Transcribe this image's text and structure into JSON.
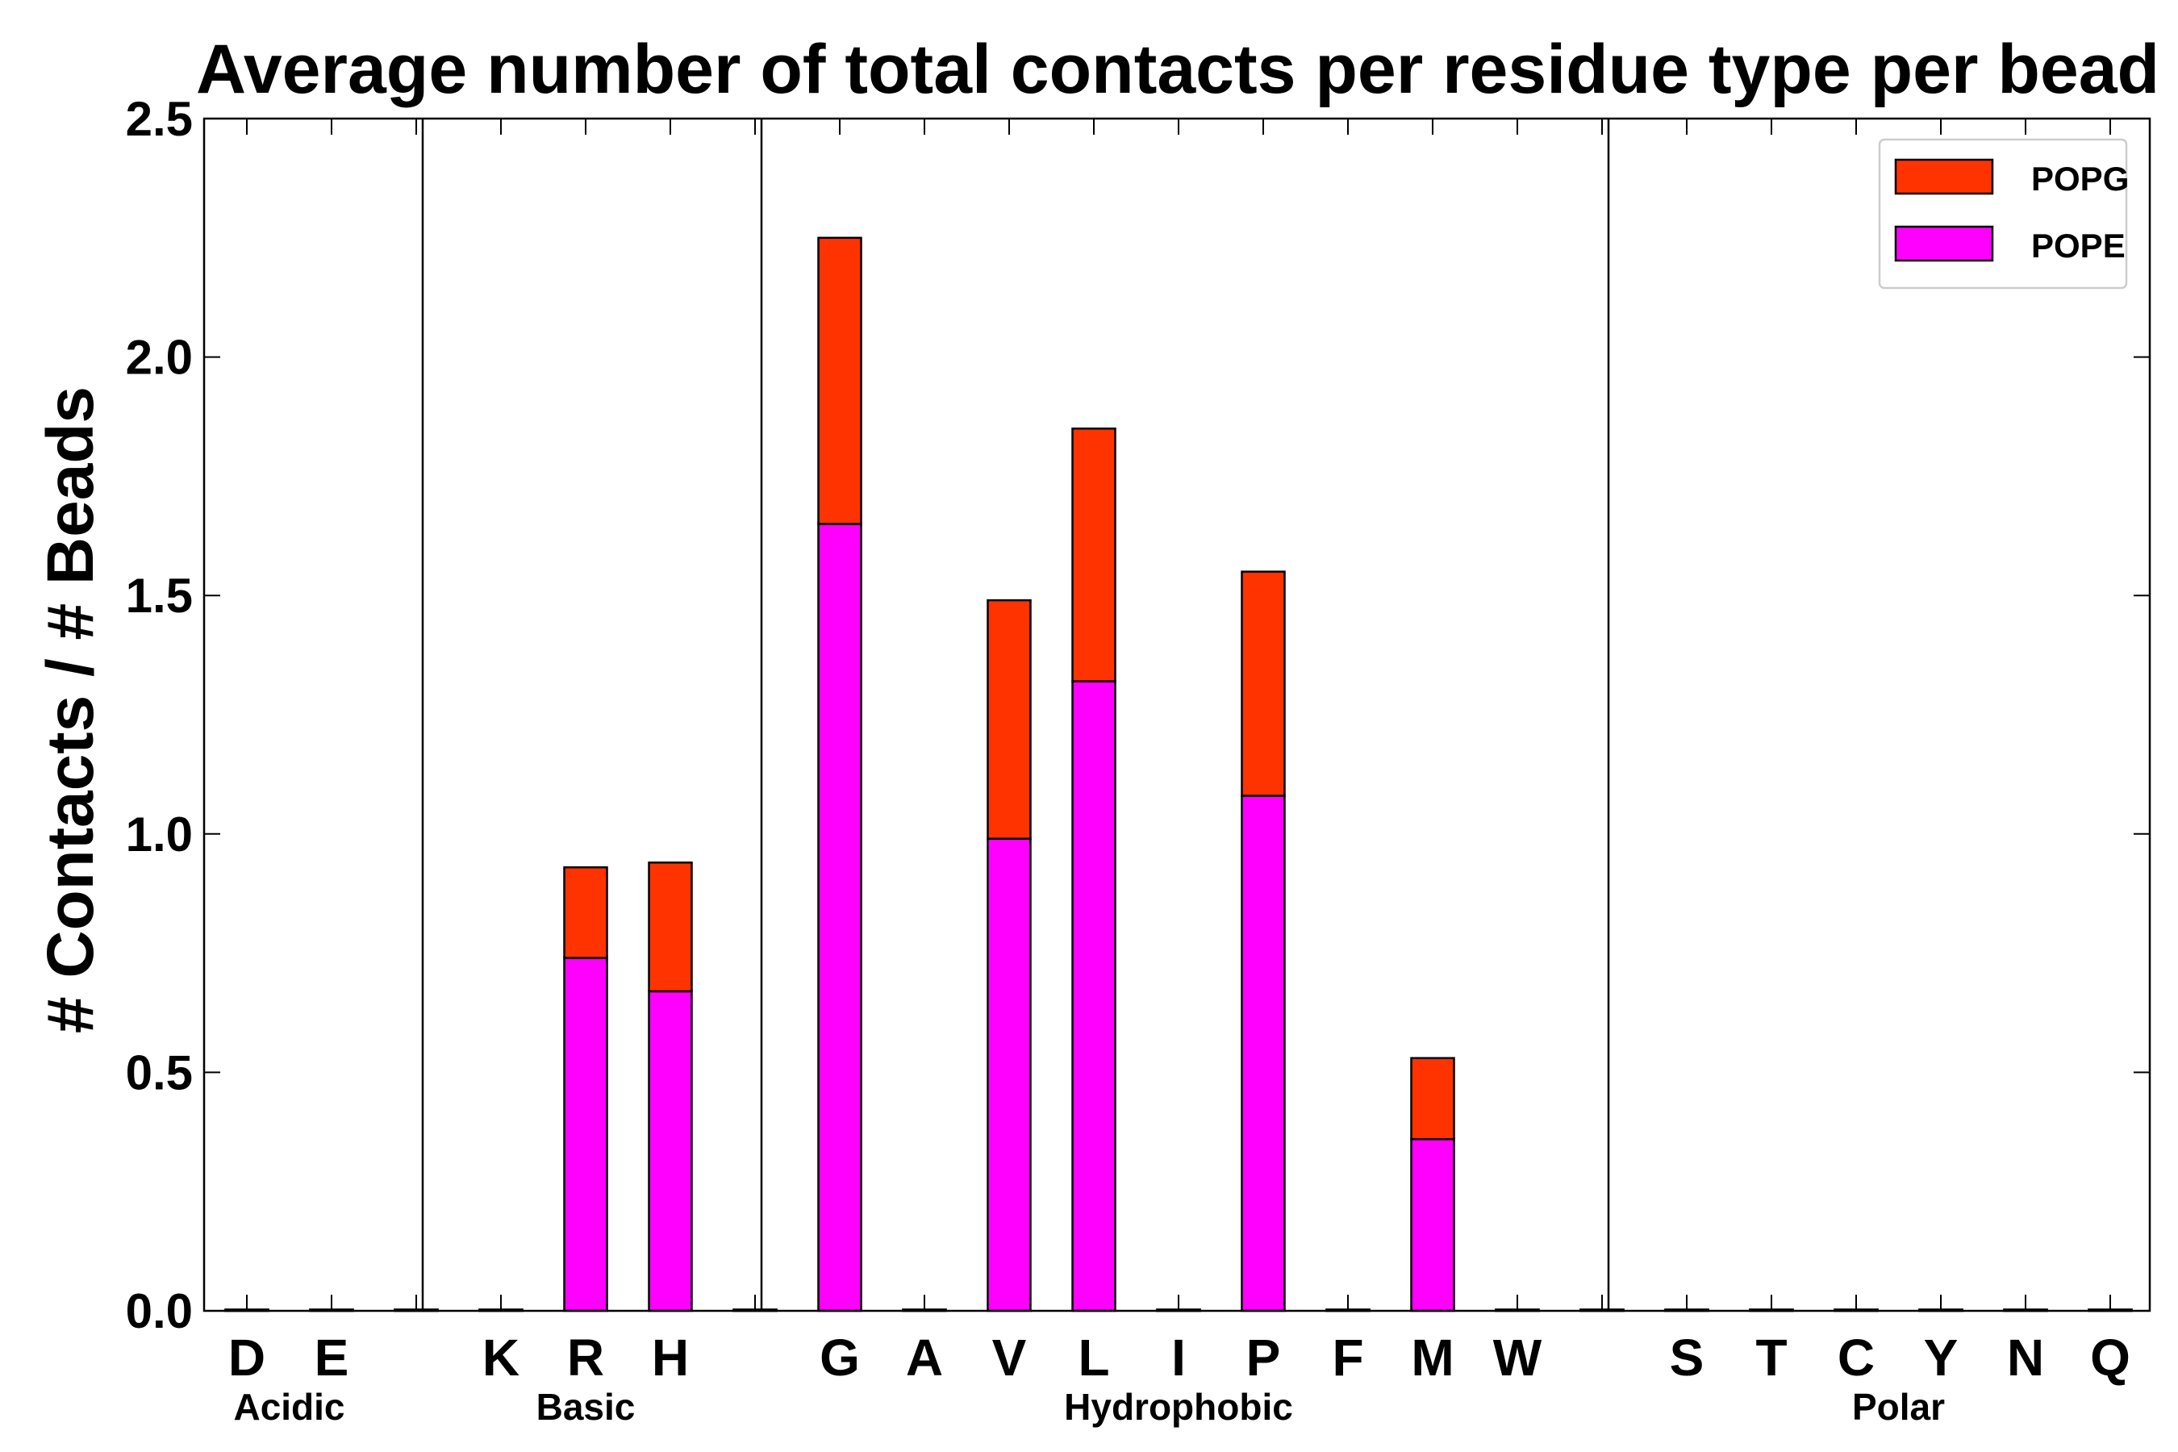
{
  "chart_data": {
    "type": "bar",
    "stacked": true,
    "title": "Average number of total contacts per residue type per bead",
    "xlabel": "",
    "ylabel": "# Contacts / # Beads",
    "ylim": [
      0,
      2.5
    ],
    "yticks": [
      "0.0",
      "0.5",
      "1.0",
      "1.5",
      "2.0",
      "2.5"
    ],
    "categories": [
      "D",
      "E",
      "",
      "K",
      "R",
      "H",
      "",
      "G",
      "A",
      "V",
      "L",
      "I",
      "P",
      "F",
      "M",
      "W",
      "",
      "S",
      "T",
      "C",
      "Y",
      "N",
      "Q"
    ],
    "series": [
      {
        "name": "POPE",
        "color": "#ff00ff",
        "values": [
          0,
          0,
          0,
          0,
          0.74,
          0.67,
          0,
          1.65,
          0,
          0.99,
          1.32,
          0,
          1.08,
          0,
          0.36,
          0,
          0,
          0,
          0,
          0,
          0,
          0,
          0
        ]
      },
      {
        "name": "POPG",
        "color": "#ff3300",
        "values": [
          0,
          0,
          0,
          0,
          0.19,
          0.27,
          0,
          0.6,
          0,
          0.5,
          0.53,
          0,
          0.47,
          0,
          0.17,
          0,
          0,
          0,
          0,
          0,
          0,
          0,
          0
        ]
      }
    ],
    "groups": [
      {
        "label": "Acidic",
        "from": 0,
        "to": 1
      },
      {
        "label": "Basic",
        "from": 3,
        "to": 5
      },
      {
        "label": "Hydrophobic",
        "from": 7,
        "to": 15
      },
      {
        "label": "Polar",
        "from": 17,
        "to": 22
      }
    ],
    "separators_after": [
      2,
      6,
      16
    ],
    "legend": {
      "position": "top-right",
      "entries": [
        "POPG",
        "POPE"
      ]
    }
  }
}
